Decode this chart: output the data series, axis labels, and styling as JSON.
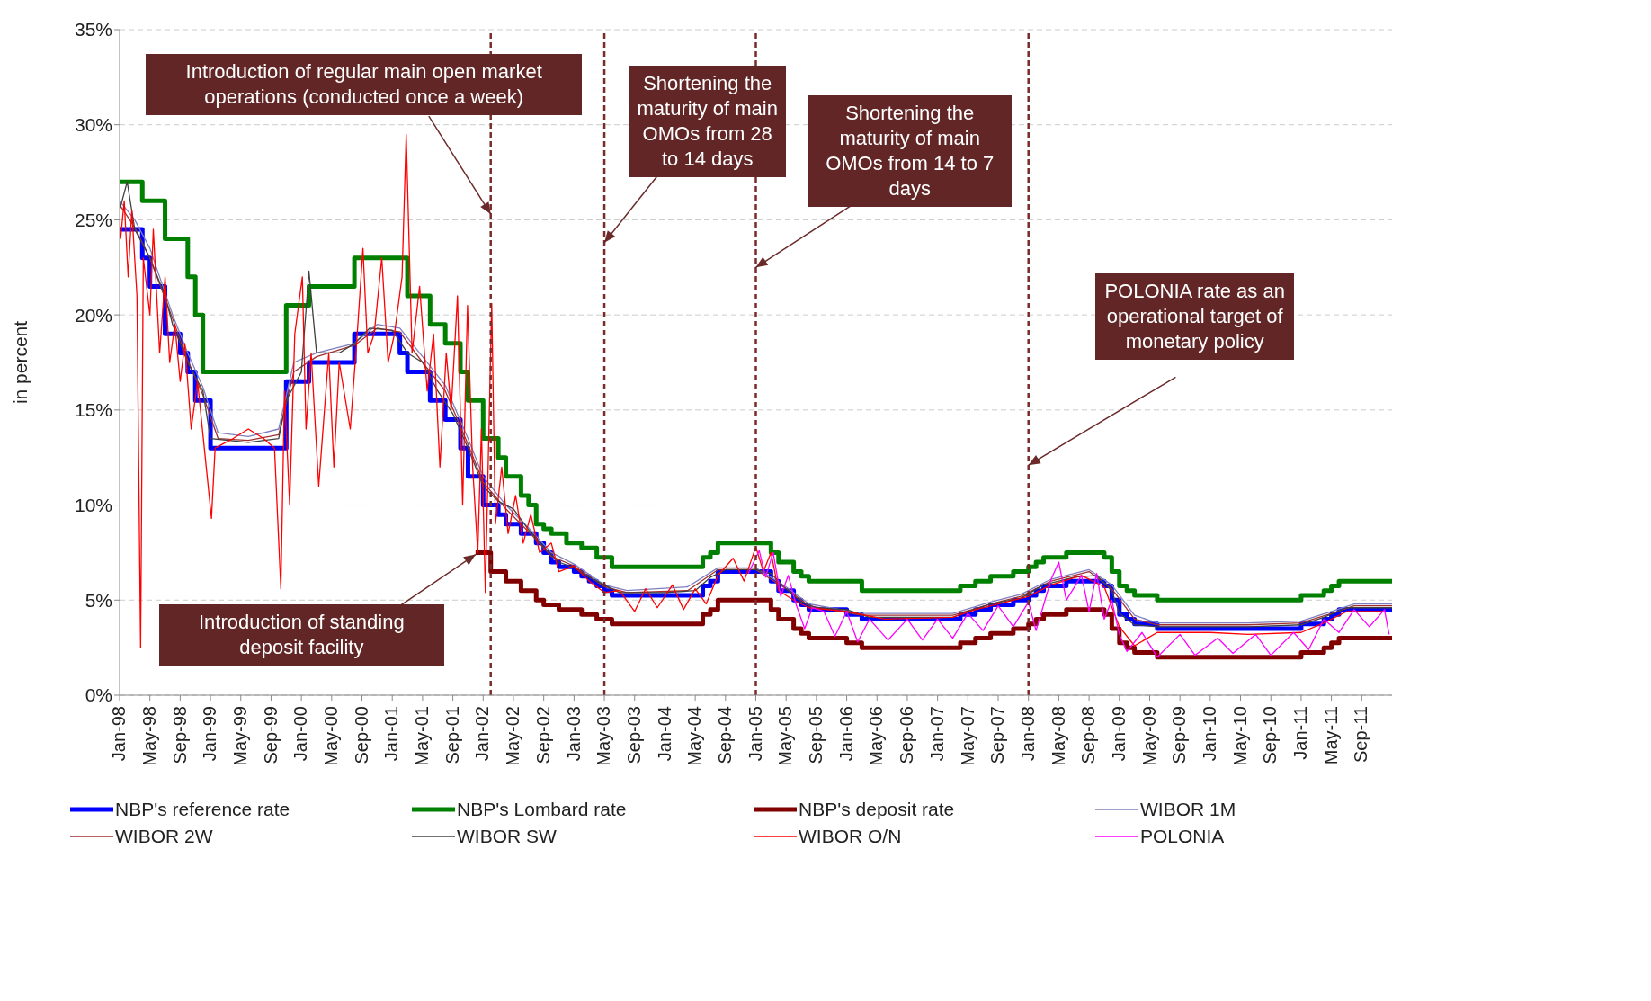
{
  "chart_data": {
    "type": "line",
    "ylabel": "in percent",
    "legend": "bottom",
    "grid": "y",
    "xlim": [
      "1998-01",
      "2012-01"
    ],
    "ylim": [
      0,
      35
    ],
    "yticks": [
      {
        "value": 0,
        "label": "0%"
      },
      {
        "value": 5,
        "label": "5%"
      },
      {
        "value": 10,
        "label": "10%"
      },
      {
        "value": 15,
        "label": "15%"
      },
      {
        "value": 20,
        "label": "20%"
      },
      {
        "value": 25,
        "label": "25%"
      },
      {
        "value": 30,
        "label": "30%"
      },
      {
        "value": 35,
        "label": "35%"
      }
    ],
    "xticks": [
      {
        "value": "1998-01",
        "label": "Jan-98"
      },
      {
        "value": "1998-05",
        "label": "May-98"
      },
      {
        "value": "1998-09",
        "label": "Sep-98"
      },
      {
        "value": "1999-01",
        "label": "Jan-99"
      },
      {
        "value": "1999-05",
        "label": "May-99"
      },
      {
        "value": "1999-09",
        "label": "Sep-99"
      },
      {
        "value": "2000-01",
        "label": "Jan-00"
      },
      {
        "value": "2000-05",
        "label": "May-00"
      },
      {
        "value": "2000-09",
        "label": "Sep-00"
      },
      {
        "value": "2001-01",
        "label": "Jan-01"
      },
      {
        "value": "2001-05",
        "label": "May-01"
      },
      {
        "value": "2001-09",
        "label": "Sep-01"
      },
      {
        "value": "2002-01",
        "label": "Jan-02"
      },
      {
        "value": "2002-05",
        "label": "May-02"
      },
      {
        "value": "2002-09",
        "label": "Sep-02"
      },
      {
        "value": "2003-01",
        "label": "Jan-03"
      },
      {
        "value": "2003-05",
        "label": "May-03"
      },
      {
        "value": "2003-09",
        "label": "Sep-03"
      },
      {
        "value": "2004-01",
        "label": "Jan-04"
      },
      {
        "value": "2004-05",
        "label": "May-04"
      },
      {
        "value": "2004-09",
        "label": "Sep-04"
      },
      {
        "value": "2005-01",
        "label": "Jan-05"
      },
      {
        "value": "2005-05",
        "label": "May-05"
      },
      {
        "value": "2005-09",
        "label": "Sep-05"
      },
      {
        "value": "2006-01",
        "label": "Jan-06"
      },
      {
        "value": "2006-05",
        "label": "May-06"
      },
      {
        "value": "2006-09",
        "label": "Sep-06"
      },
      {
        "value": "2007-01",
        "label": "Jan-07"
      },
      {
        "value": "2007-05",
        "label": "May-07"
      },
      {
        "value": "2007-09",
        "label": "Sep-07"
      },
      {
        "value": "2008-01",
        "label": "Jan-08"
      },
      {
        "value": "2008-05",
        "label": "May-08"
      },
      {
        "value": "2008-09",
        "label": "Sep-08"
      },
      {
        "value": "2009-01",
        "label": "Jan-09"
      },
      {
        "value": "2009-05",
        "label": "May-09"
      },
      {
        "value": "2009-09",
        "label": "Sep-09"
      },
      {
        "value": "2010-01",
        "label": "Jan-10"
      },
      {
        "value": "2010-05",
        "label": "May-10"
      },
      {
        "value": "2010-09",
        "label": "Sep-10"
      },
      {
        "value": "2011-01",
        "label": "Jan-11"
      },
      {
        "value": "2011-05",
        "label": "May-11"
      },
      {
        "value": "2011-09",
        "label": "Sep-11"
      }
    ],
    "series": [
      {
        "name": "NBP's reference rate",
        "type": "step",
        "color": "#0000ff",
        "x": [
          "1998-01",
          "1998-04",
          "1998-05",
          "1998-07",
          "1998-09",
          "1998-10",
          "1998-11",
          "1999-01",
          "1999-11",
          "2000-02",
          "2000-08",
          "2001-02",
          "2001-03",
          "2001-06",
          "2001-08",
          "2001-10",
          "2001-11",
          "2002-01",
          "2002-03",
          "2002-04",
          "2002-06",
          "2002-08",
          "2002-09",
          "2002-10",
          "2002-11",
          "2003-01",
          "2003-02",
          "2003-03",
          "2003-04",
          "2003-05",
          "2003-06",
          "2004-06",
          "2004-07",
          "2004-08",
          "2005-03",
          "2005-04",
          "2005-06",
          "2005-07",
          "2005-08",
          "2006-01",
          "2006-03",
          "2007-04",
          "2007-06",
          "2007-08",
          "2007-11",
          "2008-01",
          "2008-02",
          "2008-03",
          "2008-06",
          "2008-11",
          "2008-12",
          "2009-01",
          "2009-02",
          "2009-03",
          "2009-06",
          "2011-01",
          "2011-04",
          "2011-05",
          "2011-06",
          "2012-01"
        ],
        "values": [
          24.5,
          23,
          21.5,
          19,
          18,
          17,
          15.5,
          13,
          16.5,
          17.5,
          19,
          18,
          17,
          15.5,
          14.5,
          13,
          11.5,
          10,
          9.5,
          9,
          8.5,
          8,
          7.5,
          7,
          6.75,
          6.5,
          6.25,
          6,
          5.75,
          5.5,
          5.25,
          5.75,
          6,
          6.5,
          6,
          5.5,
          5,
          4.75,
          4.5,
          4.25,
          4,
          4.25,
          4.5,
          4.75,
          5,
          5.25,
          5.5,
          5.75,
          6,
          5.75,
          5,
          4.25,
          4,
          3.75,
          3.5,
          3.75,
          4,
          4.25,
          4.5,
          4.5
        ]
      },
      {
        "name": "NBP's Lombard rate",
        "type": "step",
        "color": "#008000",
        "x": [
          "1998-01",
          "1998-04",
          "1998-07",
          "1998-10",
          "1998-11",
          "1998-12",
          "1999-01",
          "1999-11",
          "2000-02",
          "2000-08",
          "2001-03",
          "2001-06",
          "2001-08",
          "2001-10",
          "2001-11",
          "2002-01",
          "2002-03",
          "2002-04",
          "2002-06",
          "2002-07",
          "2002-08",
          "2002-09",
          "2002-10",
          "2002-12",
          "2003-02",
          "2003-04",
          "2003-06",
          "2004-06",
          "2004-07",
          "2004-08",
          "2005-03",
          "2005-04",
          "2005-06",
          "2005-07",
          "2005-08",
          "2006-03",
          "2007-04",
          "2007-06",
          "2007-08",
          "2007-11",
          "2008-01",
          "2008-02",
          "2008-03",
          "2008-06",
          "2008-11",
          "2008-12",
          "2009-01",
          "2009-02",
          "2009-03",
          "2009-06",
          "2011-01",
          "2011-04",
          "2011-05",
          "2011-06",
          "2012-01"
        ],
        "values": [
          27,
          26,
          24,
          22,
          20,
          17,
          17,
          20.5,
          21.5,
          23,
          21,
          19.5,
          18.5,
          17,
          15.5,
          13.5,
          12.5,
          11.5,
          10.5,
          10,
          9,
          8.75,
          8.5,
          8,
          7.75,
          7.25,
          6.75,
          7.25,
          7.5,
          8,
          7.5,
          7,
          6.5,
          6.25,
          6,
          5.5,
          5.75,
          6,
          6.25,
          6.5,
          6.75,
          7,
          7.25,
          7.5,
          7.25,
          6.5,
          5.75,
          5.5,
          5.25,
          5,
          5.25,
          5.5,
          5.75,
          6,
          6
        ]
      },
      {
        "name": "NBP's deposit rate",
        "type": "step",
        "color": "#800000",
        "x": [
          "2001-12",
          "2002-02",
          "2002-04",
          "2002-06",
          "2002-08",
          "2002-09",
          "2002-10",
          "2002-11",
          "2003-01",
          "2003-02",
          "2003-03",
          "2003-04",
          "2003-05",
          "2003-06",
          "2004-06",
          "2004-07",
          "2004-08",
          "2005-03",
          "2005-04",
          "2005-06",
          "2005-07",
          "2005-08",
          "2006-01",
          "2006-03",
          "2007-04",
          "2007-06",
          "2007-08",
          "2007-11",
          "2008-01",
          "2008-02",
          "2008-03",
          "2008-06",
          "2008-11",
          "2008-12",
          "2009-01",
          "2009-02",
          "2009-03",
          "2009-06",
          "2011-01",
          "2011-04",
          "2011-05",
          "2011-06",
          "2012-01"
        ],
        "values": [
          7.5,
          6.5,
          6,
          5.5,
          5,
          4.75,
          4.75,
          4.5,
          4.5,
          4.25,
          4.25,
          4,
          4,
          3.75,
          4.25,
          4.5,
          5,
          4.5,
          4,
          3.5,
          3.25,
          3,
          2.75,
          2.5,
          2.75,
          3,
          3.25,
          3.5,
          3.75,
          4,
          4.25,
          4.5,
          4.25,
          3.5,
          2.75,
          2.5,
          2.25,
          2,
          2.25,
          2.5,
          2.75,
          3,
          3
        ]
      },
      {
        "name": "WIBOR 1M",
        "color": "#7f7fc0",
        "x": [
          "1998-01",
          "1998-03",
          "1998-05",
          "1998-08",
          "1998-10",
          "1998-12",
          "1999-02",
          "1999-06",
          "1999-10",
          "1999-12",
          "2000-03",
          "2000-08",
          "2000-11",
          "2001-02",
          "2001-05",
          "2001-08",
          "2001-11",
          "2002-01",
          "2002-04",
          "2002-07",
          "2002-10",
          "2003-01",
          "2003-05",
          "2003-08",
          "2004-04",
          "2004-08",
          "2005-01",
          "2005-05",
          "2005-08",
          "2006-03",
          "2007-03",
          "2007-08",
          "2007-12",
          "2008-04",
          "2008-09",
          "2008-12",
          "2009-03",
          "2009-06",
          "2010-06",
          "2011-01",
          "2011-05",
          "2011-08",
          "2012-01"
        ],
        "values": [
          26,
          25,
          23.5,
          20,
          18,
          16.2,
          13.8,
          13.6,
          14,
          17.5,
          18,
          18.5,
          19.5,
          19.3,
          17.8,
          16.3,
          13.5,
          11.5,
          10,
          8.8,
          7.5,
          6.9,
          5.8,
          5.5,
          5.7,
          6.7,
          6.7,
          5.7,
          4.8,
          4.3,
          4.3,
          4.9,
          5.3,
          6.1,
          6.6,
          5.8,
          4.2,
          3.8,
          3.8,
          3.9,
          4.4,
          4.8,
          4.8
        ]
      },
      {
        "name": "WIBOR 2W",
        "color": "#a03030",
        "x": [
          "1998-01",
          "1998-03",
          "1998-05",
          "1998-08",
          "1998-10",
          "1998-12",
          "1999-02",
          "1999-06",
          "1999-10",
          "1999-12",
          "2000-03",
          "2000-08",
          "2000-11",
          "2001-02",
          "2001-05",
          "2001-08",
          "2001-11",
          "2002-01",
          "2002-04",
          "2002-07",
          "2002-10",
          "2003-01",
          "2003-05",
          "2003-08",
          "2004-04",
          "2004-08",
          "2005-01",
          "2005-05",
          "2005-08",
          "2006-03",
          "2007-03",
          "2007-08",
          "2007-12",
          "2008-04",
          "2008-09",
          "2008-12",
          "2009-03",
          "2009-06",
          "2010-06",
          "2011-01",
          "2011-05",
          "2011-08",
          "2012-01"
        ],
        "values": [
          25.8,
          24.6,
          23,
          19.8,
          17.6,
          15.8,
          13.5,
          13.4,
          13.7,
          17,
          17.8,
          18.4,
          19.3,
          19.1,
          17.5,
          16,
          13.2,
          11.2,
          9.8,
          8.6,
          7.3,
          6.8,
          5.7,
          5.4,
          5.5,
          6.6,
          6.6,
          5.6,
          4.7,
          4.2,
          4.2,
          4.8,
          5.2,
          6,
          6.5,
          5.6,
          4,
          3.7,
          3.7,
          3.8,
          4.3,
          4.7,
          4.7
        ]
      },
      {
        "name": "WIBOR SW",
        "color": "#404040",
        "x": [
          "1998-01",
          "1998-02",
          "1998-03",
          "1998-05",
          "1998-07",
          "1998-08",
          "1998-10",
          "1998-12",
          "1999-01",
          "1999-06",
          "1999-10",
          "1999-11",
          "2000-01",
          "2000-02",
          "2000-03",
          "2000-06",
          "2000-08",
          "2000-10",
          "2001-01",
          "2001-03",
          "2001-05",
          "2001-07",
          "2001-09",
          "2001-11",
          "2001-12",
          "2002-01",
          "2002-03",
          "2002-05",
          "2002-07",
          "2002-09",
          "2002-11",
          "2003-01",
          "2003-03",
          "2003-05",
          "2003-07",
          "2004-01",
          "2004-05",
          "2004-07",
          "2004-09",
          "2005-01",
          "2005-03",
          "2005-05",
          "2005-07",
          "2005-09",
          "2006-01",
          "2006-04",
          "2007-03",
          "2007-05",
          "2007-08",
          "2007-12",
          "2008-03",
          "2008-07",
          "2008-10",
          "2008-12",
          "2009-01",
          "2009-03",
          "2009-06",
          "2010-06",
          "2011-01",
          "2011-04",
          "2011-07",
          "2012-01"
        ],
        "values": [
          25.5,
          27,
          24.5,
          23,
          21,
          19.5,
          17.5,
          16,
          13.5,
          13.3,
          13.5,
          15.5,
          17,
          22.3,
          18,
          18,
          18.5,
          19.3,
          19.2,
          18,
          17.5,
          16,
          14.8,
          13,
          12,
          11,
          10.2,
          9.8,
          8.7,
          7.8,
          7,
          6.7,
          6.2,
          5.8,
          5.4,
          5.4,
          5.5,
          6.2,
          6.6,
          6.6,
          6.4,
          5.6,
          4.9,
          4.6,
          4.5,
          4.1,
          4.1,
          4.4,
          4.8,
          5.1,
          5.8,
          6.2,
          6.3,
          5.5,
          4.3,
          3.7,
          3.6,
          3.6,
          3.7,
          4.1,
          4.6,
          4.6
        ]
      },
      {
        "name": "WIBOR O/N",
        "color": "#ff0000",
        "x": [
          "1998-01-05",
          "1998-01-20",
          "1998-02-05",
          "1998-02-20",
          "1998-03-10",
          "1998-03-25",
          "1998-04-05",
          "1998-05-01",
          "1998-05-15",
          "1998-06-10",
          "1998-07-01",
          "1998-07-20",
          "1998-08-10",
          "1998-09-01",
          "1998-09-20",
          "1998-10-15",
          "1998-11-10",
          "1999-01-05",
          "1999-01-20",
          "1999-04-01",
          "1999-06-01",
          "1999-08-01",
          "1999-09-15",
          "1999-10-10",
          "1999-10-25",
          "1999-11-15",
          "1999-12-05",
          "2000-01-05",
          "2000-01-20",
          "2000-02-10",
          "2000-03-10",
          "2000-04-20",
          "2000-05-10",
          "2000-06-01",
          "2000-07-15",
          "2000-08-10",
          "2000-09-05",
          "2000-09-25",
          "2000-10-20",
          "2000-11-20",
          "2000-12-15",
          "2001-01-10",
          "2001-02-10",
          "2001-02-27",
          "2001-03-20",
          "2001-04-20",
          "2001-05-20",
          "2001-06-15",
          "2001-07-10",
          "2001-08-05",
          "2001-08-25",
          "2001-09-20",
          "2001-10-10",
          "2001-10-30",
          "2001-11-20",
          "2001-12-10",
          "2001-12-25",
          "2002-01-10",
          "2002-02-05",
          "2002-02-20",
          "2002-03-15",
          "2002-04-10",
          "2002-05-10",
          "2002-06-10",
          "2002-07-10",
          "2002-08-15",
          "2002-10-01",
          "2002-11-01",
          "2003-01-01",
          "2003-03-01",
          "2003-05-01",
          "2003-07-01",
          "2003-09-01",
          "2003-10-15",
          "2003-12-01",
          "2004-02-01",
          "2004-03-15",
          "2004-05-01",
          "2004-06-15",
          "2004-08-01",
          "2004-10-01",
          "2004-11-15",
          "2005-01-01",
          "2005-02-01",
          "2005-03-01",
          "2005-04-01",
          "2005-06-01",
          "2005-08-01",
          "2006-01-01",
          "2006-06-01",
          "2007-03-01",
          "2007-06-01",
          "2007-09-01",
          "2008-01-01",
          "2008-04-01",
          "2008-08-01",
          "2008-11-01",
          "2009-01-01",
          "2009-03-01",
          "2009-06-01",
          "2010-01-01",
          "2010-06-01",
          "2011-01-01",
          "2011-04-01",
          "2011-07-01",
          "2011-12-01"
        ],
        "values": [
          24,
          26,
          22,
          25.5,
          21,
          2.5,
          23,
          20,
          24.5,
          18,
          22,
          17.5,
          19.5,
          16.5,
          18.5,
          14,
          16.5,
          9.3,
          13,
          13.5,
          14,
          13.5,
          13,
          5.6,
          16,
          10,
          19,
          22,
          14,
          18,
          11,
          18,
          12,
          17.5,
          14,
          18.5,
          23.5,
          18,
          19,
          23,
          17.5,
          19,
          22,
          29.5,
          18,
          21.5,
          16,
          19,
          12,
          18,
          15,
          21,
          10,
          20.5,
          12,
          7.5,
          14,
          5.4,
          20.6,
          9,
          12,
          8.5,
          10.5,
          8,
          9.5,
          7.5,
          8,
          6.5,
          6.8,
          6,
          5.4,
          5.5,
          4.4,
          5.6,
          4.6,
          5.8,
          4.5,
          5.6,
          4.8,
          6.3,
          7.2,
          6,
          7.8,
          6.5,
          7.5,
          5.5,
          5,
          4.6,
          4.4,
          4,
          4.1,
          4.5,
          4.8,
          5.2,
          5.8,
          6.3,
          5.7,
          3.6,
          2.6,
          3.3,
          3.3,
          3.2,
          3.3,
          3.8,
          4.4,
          4.4
        ]
      },
      {
        "name": "POLONIA",
        "color": "#ff00ff",
        "x": [
          "2004-12-01",
          "2005-01-15",
          "2005-02-10",
          "2005-03-10",
          "2005-04-10",
          "2005-05-10",
          "2005-06-10",
          "2005-07-15",
          "2005-08-15",
          "2005-10-01",
          "2005-11-15",
          "2006-01-01",
          "2006-02-15",
          "2006-04-01",
          "2006-06-15",
          "2006-09-01",
          "2006-11-01",
          "2007-01-01",
          "2007-03-01",
          "2007-05-01",
          "2007-07-01",
          "2007-09-01",
          "2007-11-01",
          "2008-01-01",
          "2008-02-01",
          "2008-04-01",
          "2008-05-01",
          "2008-06-01",
          "2008-08-01",
          "2008-09-01",
          "2008-10-01",
          "2008-11-01",
          "2008-12-01",
          "2009-01-01",
          "2009-02-01",
          "2009-04-01",
          "2009-06-01",
          "2009-09-01",
          "2009-11-01",
          "2010-02-01",
          "2010-04-01",
          "2010-07-01",
          "2010-09-01",
          "2010-12-01",
          "2011-02-01",
          "2011-04-01",
          "2011-06-01",
          "2011-08-01",
          "2011-10-01",
          "2011-12-01",
          "2011-12-20"
        ],
        "values": [
          6.4,
          7.6,
          6.2,
          7.5,
          5.2,
          6.3,
          4.8,
          3.5,
          4.6,
          4.4,
          3.1,
          4.4,
          2.8,
          4,
          2.9,
          4,
          2.9,
          4,
          3,
          4.3,
          3.4,
          4.7,
          3.6,
          4.9,
          3.4,
          6.1,
          7,
          5,
          6.3,
          4.4,
          6.4,
          4,
          5,
          3.2,
          2.3,
          3.3,
          2,
          3.2,
          2.1,
          3,
          2.2,
          3.2,
          2.1,
          3.3,
          2.4,
          4,
          3.3,
          4.5,
          3.6,
          4.5,
          3.2
        ]
      }
    ],
    "ref_lines": [
      {
        "axis": "x",
        "value": "2002-02",
        "color": "#7b2b2b",
        "line_style": "dashed"
      },
      {
        "axis": "x",
        "value": "2003-05",
        "color": "#7b2b2b",
        "line_style": "dashed"
      },
      {
        "axis": "x",
        "value": "2005-01",
        "color": "#7b2b2b",
        "line_style": "dashed"
      },
      {
        "axis": "x",
        "value": "2008-01",
        "color": "#7b2b2b",
        "line_style": "dashed"
      }
    ],
    "annotations": [
      {
        "text": "Introduction of regular main open market operations (conducted once a week)",
        "x": "2002-02",
        "y": 25.3
      },
      {
        "text": "Introduction of standing deposit facility",
        "x": "2001-12",
        "y": 7.4
      },
      {
        "text": "Shortening the maturity of main OMOs from 28 to 14 days",
        "x": "2003-05",
        "y": 23.8
      },
      {
        "text": "Shortening the maturity of main OMOs from 14 to 7 days",
        "x": "2005-01",
        "y": 22.5
      },
      {
        "text": "POLONIA rate as an operational target of monetary policy",
        "x": "2008-01",
        "y": 12.1
      }
    ]
  }
}
